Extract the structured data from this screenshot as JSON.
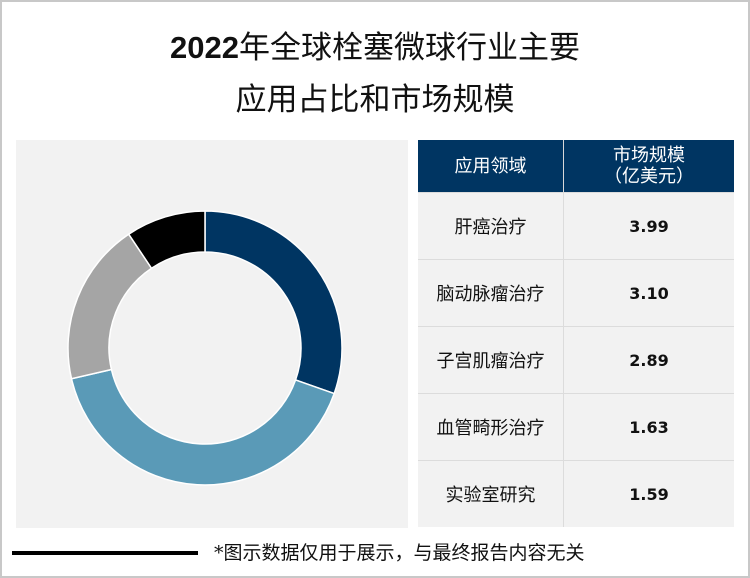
{
  "title": {
    "line1_year": "2022",
    "line1_rest": "年全球栓塞微球行业主要",
    "line2": "应用占比和市场规模"
  },
  "table": {
    "headers": [
      "应用领域",
      "市场规模",
      "（亿美元）"
    ],
    "rows": [
      {
        "label": "肝癌治疗",
        "value": "3.99"
      },
      {
        "label": "脑动脉瘤治疗",
        "value": "3.10"
      },
      {
        "label": "子宫肌瘤治疗",
        "value": "2.89"
      },
      {
        "label": "血管畸形治疗",
        "value": "1.63"
      },
      {
        "label": "实验室研究",
        "value": "1.59"
      }
    ]
  },
  "footer": {
    "note": "*图示数据仅用于展示，与最终报告内容无关"
  },
  "colors": {
    "navy": "#003562",
    "light_blue": "#5a9ab7",
    "gray": "#a5a5a5",
    "black": "#000000",
    "panel_bg": "#f2f2f2"
  },
  "chart_data": {
    "type": "pie",
    "variant": "donut",
    "title": "2022年全球栓塞微球行业主要应用占比和市场规模",
    "labels_shown": false,
    "segments": [
      {
        "color": "#003562",
        "share_pct": 30.4
      },
      {
        "color": "#5a9ab7",
        "share_pct": 41.0
      },
      {
        "color": "#a5a5a5",
        "share_pct": 19.2
      },
      {
        "color": "#000000",
        "share_pct": 9.4
      }
    ],
    "start_angle_deg": 0,
    "direction": "clockwise",
    "companion_table": {
      "columns": [
        "应用领域",
        "市场规模（亿美元）"
      ],
      "categories": [
        "肝癌治疗",
        "脑动脉瘤治疗",
        "子宫肌瘤治疗",
        "血管畸形治疗",
        "实验室研究"
      ],
      "values": [
        3.99,
        3.1,
        2.89,
        1.63,
        1.59
      ]
    }
  }
}
